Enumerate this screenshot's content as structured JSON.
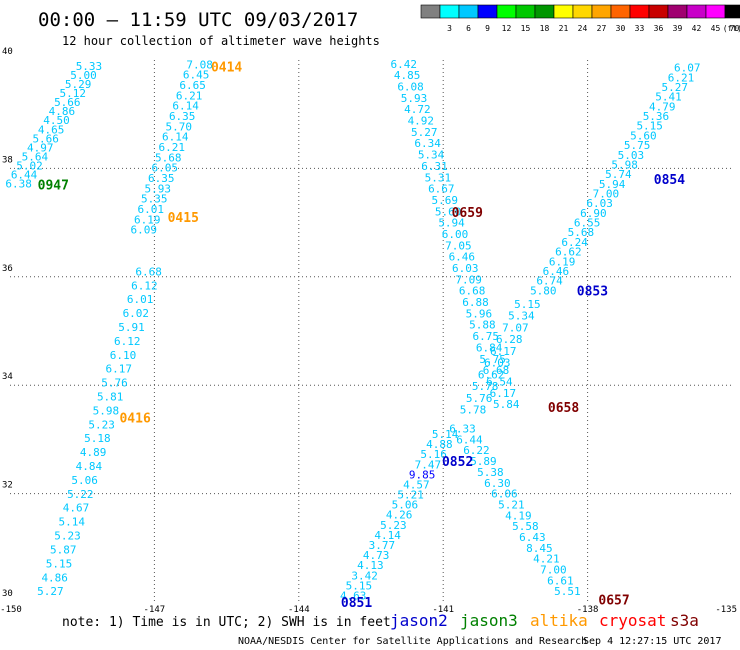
{
  "chart_data": {
    "type": "scatter",
    "title": "00:00 – 11:59 UTC 09/03/2017",
    "subtitle": "12 hour collection of altimeter wave heights",
    "note": "note: 1) Time is in UTC; 2) SWH is in feet",
    "credit": "NOAA/NESDIS Center for Satellite Applications and Research",
    "timestamp": "Sep  4 12:27:15 UTC 2017",
    "grid": true,
    "xlim": [
      -150,
      -135
    ],
    "ylim": [
      30,
      40
    ],
    "x_ticks": [
      "-150",
      "-147",
      "-144",
      "-141",
      "-138",
      "-135"
    ],
    "y_ticks": [
      "40",
      "38",
      "36",
      "34",
      "32",
      "30"
    ],
    "legend": {
      "placement": "top-right",
      "unit": "(ft)",
      "bins": [
        {
          "label": "",
          "color": "#808080"
        },
        {
          "label": "3",
          "color": "#00ffff"
        },
        {
          "label": "6",
          "color": "#00c8ff"
        },
        {
          "label": "9",
          "color": "#0000ff"
        },
        {
          "label": "12",
          "color": "#00ff00"
        },
        {
          "label": "15",
          "color": "#00c800"
        },
        {
          "label": "18",
          "color": "#009600"
        },
        {
          "label": "21",
          "color": "#ffff00"
        },
        {
          "label": "24",
          "color": "#ffd700"
        },
        {
          "label": "27",
          "color": "#ffa500"
        },
        {
          "label": "30",
          "color": "#ff6400"
        },
        {
          "label": "33",
          "color": "#ff0000"
        },
        {
          "label": "36",
          "color": "#c80000"
        },
        {
          "label": "39",
          "color": "#a00070"
        },
        {
          "label": "42",
          "color": "#c800c8"
        },
        {
          "label": "45",
          "color": "#ff00ff"
        },
        {
          "label": "70",
          "color": "#000000"
        }
      ]
    },
    "satellites": [
      {
        "name": "jason2",
        "color": "#0000cc"
      },
      {
        "name": "jason3",
        "color": "#008000"
      },
      {
        "name": "altika",
        "color": "#ff9900"
      },
      {
        "name": "cryosat",
        "color": "#ff0000"
      },
      {
        "name": "s3a",
        "color": "#800000"
      }
    ],
    "colors": {
      "cyan_label": "#00c8ff",
      "blue_label": "#0000cc",
      "grid": "#555555"
    },
    "time_labels": [
      {
        "text": "0414",
        "lon": -145.5,
        "lat": 39.88,
        "color": "#ff9900"
      },
      {
        "text": "0415",
        "lon": -146.4,
        "lat": 37.1,
        "color": "#ff9900"
      },
      {
        "text": "0416",
        "lon": -147.4,
        "lat": 33.4,
        "color": "#ff9900"
      },
      {
        "text": "0947",
        "lon": -149.1,
        "lat": 37.7,
        "color": "#008000"
      },
      {
        "text": "0659",
        "lon": -140.5,
        "lat": 37.2,
        "color": "#800000"
      },
      {
        "text": "0658",
        "lon": -138.5,
        "lat": 33.6,
        "color": "#800000"
      },
      {
        "text": "0657",
        "lon": -137.45,
        "lat": 30.05,
        "color": "#800000"
      },
      {
        "text": "0854",
        "lon": -136.3,
        "lat": 37.8,
        "color": "#0000cc"
      },
      {
        "text": "0853",
        "lon": -137.9,
        "lat": 35.75,
        "color": "#0000cc"
      },
      {
        "text": "0852",
        "lon": -140.7,
        "lat": 32.6,
        "color": "#0000cc"
      },
      {
        "text": "0851",
        "lon": -142.8,
        "lat": 30.0,
        "color": "#0000cc"
      }
    ],
    "series": [
      {
        "name": "0947",
        "color": "#00c8ff",
        "start": [
          -148.36,
          39.89
        ],
        "end": [
          -149.82,
          37.72
        ],
        "values": [
          "5.33",
          "5.00",
          "5.29",
          "5.12",
          "5.66",
          "4.86",
          "4.50",
          "4.65",
          "5.66",
          "4.97",
          "5.64",
          "5.02",
          "6.44",
          "6.38"
        ]
      },
      {
        "name": "0414",
        "color": "#00c8ff",
        "start": [
          -146.06,
          39.92
        ],
        "end": [
          -147.22,
          36.87
        ],
        "values": [
          "7.08",
          "6.45",
          "6.65",
          "6.21",
          "6.14",
          "6.35",
          "5.70",
          "6.14",
          "6.21",
          "5.68",
          "6.05",
          "6.35",
          "5.93",
          "5.35",
          "6.01",
          "6.19",
          "6.09"
        ]
      },
      {
        "name": "0416",
        "color": "#00c8ff",
        "start": [
          -147.12,
          36.1
        ],
        "end": [
          -149.16,
          30.2
        ],
        "values": [
          "6.68",
          "6.12",
          "6.01",
          "6.02",
          "5.91",
          "6.12",
          "6.10",
          "6.17",
          "5.76",
          "5.81",
          "5.98",
          "5.23",
          "5.18",
          "4.89",
          "4.84",
          "5.06",
          "5.22",
          "4.67",
          "5.14",
          "5.23",
          "5.87",
          "5.15",
          "4.86",
          "5.27"
        ]
      },
      {
        "name": "0659",
        "color": "#00c8ff",
        "start": [
          -141.82,
          39.93
        ],
        "end": [
          -139.69,
          33.65
        ],
        "values": [
          "6.42",
          "4.85",
          "6.08",
          "5.93",
          "4.72",
          "4.92",
          "5.27",
          "6.34",
          "5.34",
          "6.31",
          "5.31",
          "6.67",
          "5.69",
          "5.60",
          "5.94",
          "6.00",
          "7.05",
          "6.46",
          "6.03",
          "7.09",
          "6.68",
          "6.88",
          "5.96",
          "5.88",
          "6.75",
          "6.84",
          "5.75",
          "6.68",
          "6.54",
          "6.17",
          "5.84"
        ]
      },
      {
        "name": "0658",
        "color": "#00c8ff",
        "start": [
          -140.6,
          33.2
        ],
        "end": [
          -138.42,
          30.2
        ],
        "values": [
          "6.33",
          "6.44",
          "6.22",
          "5.89",
          "5.38",
          "6.30",
          "6.06",
          "5.21",
          "4.19",
          "5.58",
          "6.43",
          "8.45",
          "4.21",
          "7.00",
          "6.61",
          "5.51"
        ]
      },
      {
        "name": "0854",
        "color": "#00c8ff",
        "start": [
          -135.93,
          39.86
        ],
        "end": [
          -138.92,
          35.75
        ],
        "values": [
          "6.07",
          "6.21",
          "5.27",
          "5.41",
          "4.79",
          "5.36",
          "5.15",
          "5.60",
          "5.75",
          "5.03",
          "5.98",
          "5.74",
          "5.94",
          "7.00",
          "6.03",
          "6.90",
          "6.55",
          "5.68",
          "6.24",
          "6.62",
          "6.19",
          "6.46",
          "6.74",
          "5.80"
        ]
      },
      {
        "name": "0853",
        "color": "#00c8ff",
        "start": [
          -139.25,
          35.5
        ],
        "end": [
          -140.38,
          33.55
        ],
        "values": [
          "5.15",
          "5.34",
          "7.07",
          "6.28",
          "6.17",
          "6.03",
          "6.62",
          "5.78",
          "5.76",
          "5.78"
        ]
      },
      {
        "name": "0852",
        "color": "#00c8ff",
        "start": [
          -140.96,
          33.1
        ],
        "end": [
          -142.87,
          30.12
        ],
        "values": [
          "5.14",
          "4.88",
          "5.16",
          "7.47",
          "9.85",
          "4.57",
          "5.21",
          "5.06",
          "4.26",
          "5.23",
          "4.14",
          "3.77",
          "4.73",
          "4.13",
          "3.42",
          "5.15",
          "4.63"
        ]
      }
    ],
    "highlights": [
      {
        "series": "0852",
        "index": 4,
        "color": "#0000ff"
      }
    ]
  }
}
